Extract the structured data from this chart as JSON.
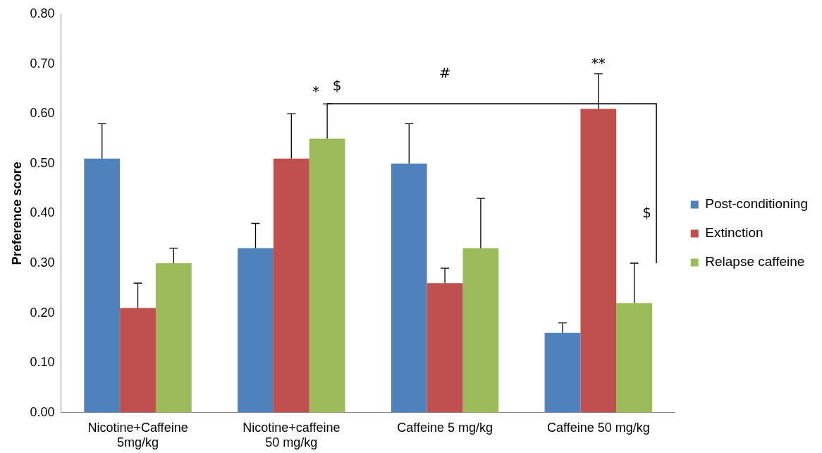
{
  "chart_data": {
    "type": "bar",
    "ylabel": "Preference score",
    "categories": [
      "Nicotine+Caffeine\n5mg/kg",
      "Nicotine+caffeine\n50 mg/kg",
      "Caffeine 5 mg/kg",
      "Caffeine 50 mg/kg"
    ],
    "series": [
      {
        "name": "Post-conditioning",
        "color": "#4f81bd",
        "values": [
          0.51,
          0.33,
          0.5,
          0.16
        ],
        "errors": [
          [
            0.51,
            0.58
          ],
          [
            0.33,
            0.38
          ],
          [
            0.5,
            0.58
          ],
          [
            0.16,
            0.18
          ]
        ]
      },
      {
        "name": "Extinction",
        "color": "#c0504d",
        "values": [
          0.21,
          0.51,
          0.26,
          0.61
        ],
        "errors": [
          [
            0.21,
            0.26
          ],
          [
            0.51,
            0.6
          ],
          [
            0.26,
            0.29
          ],
          [
            0.61,
            0.68
          ]
        ]
      },
      {
        "name": "Relapse caffeine",
        "color": "#9bbb59",
        "values": [
          0.3,
          0.55,
          0.33,
          0.22
        ],
        "errors": [
          [
            0.3,
            0.33
          ],
          [
            0.55,
            0.62
          ],
          [
            0.33,
            0.43
          ],
          [
            0.22,
            0.3
          ]
        ]
      }
    ],
    "ylim": [
      0,
      0.8
    ],
    "yticks": [
      {
        "value": 0,
        "label": "0.00"
      },
      {
        "value": 0.1,
        "label": "0.10"
      },
      {
        "value": 0.2,
        "label": "0.20"
      },
      {
        "value": 0.3,
        "label": "0.30"
      },
      {
        "value": 0.4,
        "label": "0.40"
      },
      {
        "value": 0.5,
        "label": "0.50"
      },
      {
        "value": 0.6,
        "label": "0.60"
      },
      {
        "value": 0.7,
        "label": "0.70"
      },
      {
        "value": 0.8,
        "label": "0.80"
      }
    ],
    "grid": false,
    "legend": "right",
    "annotations": [
      "*",
      "$",
      "#",
      "**",
      "$"
    ]
  }
}
